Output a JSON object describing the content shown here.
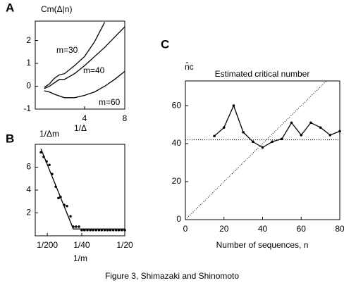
{
  "chart_data": [
    {
      "type": "line",
      "panel_label": "A",
      "ylabel": "Cm(Δ|n)",
      "xlabel": "1/Δ",
      "xlim": [
        -0.9,
        8
      ],
      "ylim": [
        -1,
        2.85
      ],
      "xticks": [
        4,
        8
      ],
      "yticks": [
        -1,
        0,
        1,
        2
      ],
      "series": [
        {
          "name": "m=30",
          "color": "#000",
          "mode": "line",
          "x": [
            0,
            0.5,
            1,
            1.5,
            2,
            3,
            4,
            5,
            6
          ],
          "values": [
            -0.05,
            0.1,
            0.35,
            0.5,
            0.55,
            0.9,
            1.3,
            1.95,
            2.8
          ]
        },
        {
          "name": "m=40",
          "color": "#000",
          "mode": "line",
          "x": [
            0,
            0.5,
            1,
            1.5,
            2,
            3,
            4,
            5,
            6,
            7,
            8
          ],
          "values": [
            -0.1,
            0,
            0.15,
            0.3,
            0.3,
            0.55,
            0.9,
            1.3,
            1.7,
            2.15,
            2.6
          ]
        },
        {
          "name": "m=60",
          "color": "#000",
          "mode": "line",
          "x": [
            0,
            0.5,
            1,
            2,
            3,
            4,
            5,
            6,
            7,
            8
          ],
          "values": [
            -0.2,
            -0.25,
            -0.35,
            -0.5,
            -0.5,
            -0.4,
            -0.25,
            0,
            0.3,
            0.65
          ]
        }
      ]
    },
    {
      "type": "scatter",
      "panel_label": "B",
      "ylabel": "1/Δm",
      "xlabel": "1/m",
      "xlim": [
        -0.002,
        0.05
      ],
      "ylim": [
        0,
        8
      ],
      "xticks": [
        {
          "value": 0.005,
          "label": "1/200"
        },
        {
          "value": 0.025,
          "label": "1/40"
        },
        {
          "value": 0.05,
          "label": "1/20"
        }
      ],
      "yticks": [
        2,
        4,
        6
      ],
      "series": [
        {
          "color": "#000",
          "mode": "markers",
          "x": [
            0.0013,
            0.0029,
            0.0046,
            0.0062,
            0.0078,
            0.0099,
            0.0115,
            0.0127,
            0.0148,
            0.0164,
            0.0185,
            0.0201,
            0.0217,
            0.0234,
            0.025,
            0.0266,
            0.0283,
            0.03,
            0.0316,
            0.0333,
            0.035,
            0.0366,
            0.0383,
            0.04,
            0.0416,
            0.0433,
            0.045,
            0.0466,
            0.0483,
            0.05
          ],
          "values": [
            7.3,
            6.9,
            6.5,
            6.2,
            5.4,
            4.3,
            3.3,
            3.4,
            2.7,
            2.6,
            1.7,
            0.8,
            0.8,
            0.8,
            0.5,
            0.5,
            0.5,
            0.5,
            0.5,
            0.5,
            0.5,
            0.5,
            0.5,
            0.5,
            0.5,
            0.5,
            0.5,
            0.5,
            0.5,
            0.5
          ]
        },
        {
          "color": "#000",
          "mode": "line",
          "x": [
            0.0013,
            0.0201,
            0.05
          ],
          "values": [
            7.6,
            0.6,
            0.6
          ]
        }
      ]
    },
    {
      "type": "line",
      "panel_label": "C",
      "title": "Estimated critical number",
      "ylabel": "n̂c",
      "xlabel": "Number of sequences, n",
      "xlim": [
        0,
        80
      ],
      "ylim": [
        0,
        73
      ],
      "xticks": [
        0,
        20,
        40,
        60,
        80
      ],
      "yticks": [
        0,
        20,
        40,
        60
      ],
      "reference_y": 42,
      "diagonal": true,
      "series": [
        {
          "color": "#000",
          "mode": "line+markers",
          "x": [
            15,
            20,
            25,
            30,
            35,
            40,
            45,
            50,
            55,
            60,
            65,
            70,
            75,
            80
          ],
          "values": [
            44,
            48.5,
            60,
            46,
            41,
            38,
            41,
            42.5,
            51,
            44.5,
            51,
            48.5,
            44.5,
            46.5
          ]
        }
      ]
    }
  ],
  "caption": "Figure 3, Shimazaki and Shinomoto"
}
